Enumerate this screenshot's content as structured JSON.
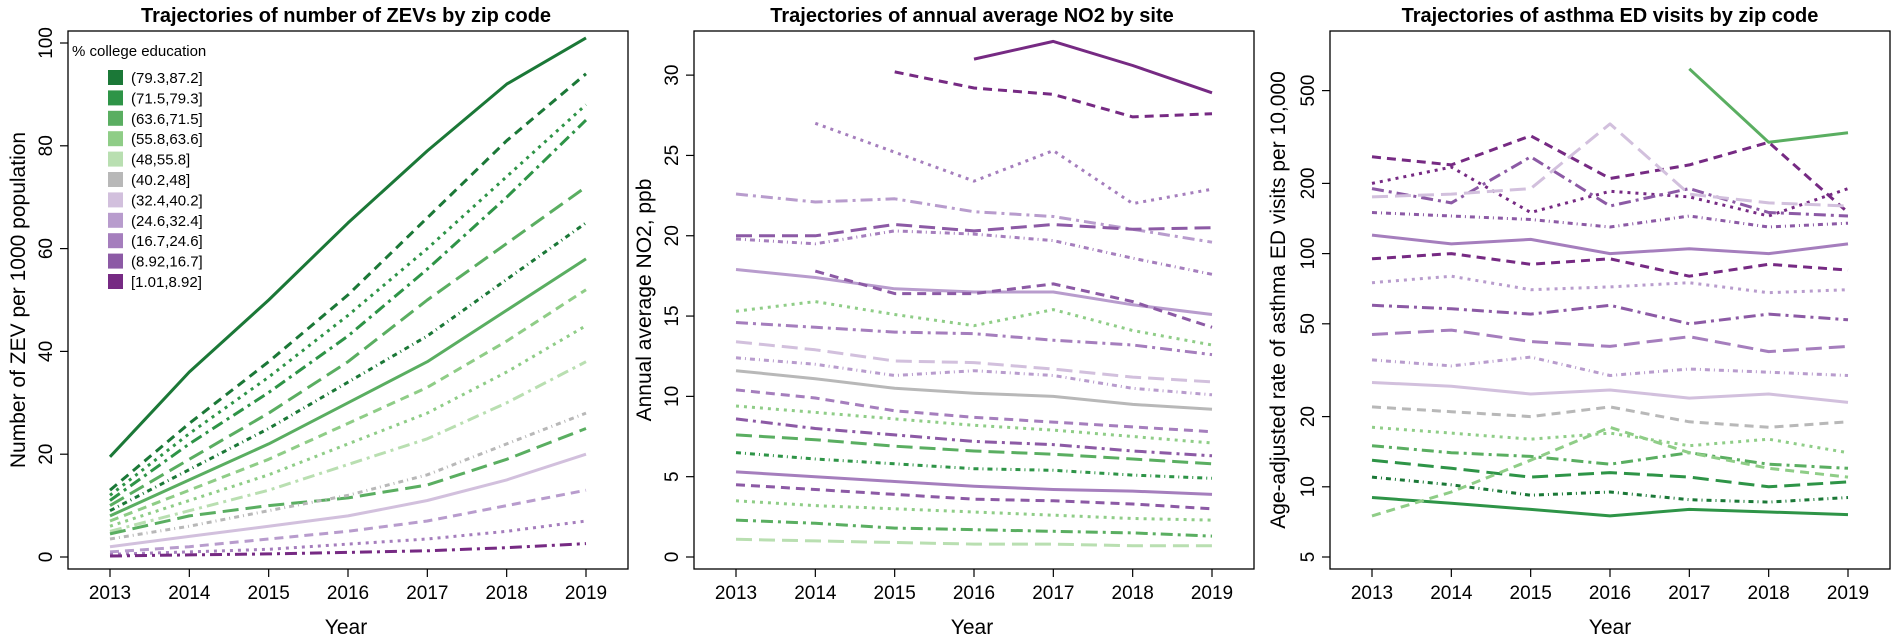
{
  "chart_data": [
    {
      "type": "line",
      "title": "Trajectories of number of ZEVs by zip code",
      "xlabel": "Year",
      "ylabel": "Number of ZEV per 1000 population",
      "x": [
        2013,
        2014,
        2015,
        2016,
        2017,
        2018,
        2019
      ],
      "xlim": [
        2013,
        2019
      ],
      "ylim": [
        0,
        100
      ],
      "yticks": [
        0,
        20,
        40,
        60,
        80,
        100
      ],
      "legend": {
        "title": "% college education",
        "placement": "top-left",
        "entries": [
          "(79.3,87.2]",
          "(71.5,79.3]",
          "(63.6,71.5]",
          "(55.8,63.6]",
          "(48,55.8]",
          "(40.2,48]",
          "(32.4,40.2]",
          "(24.6,32.4]",
          "(16.7,24.6]",
          "(8.92,16.7]",
          "[1.01,8.92]"
        ],
        "colors": [
          "#1b7837",
          "#2e9447",
          "#5aae61",
          "#8fcd87",
          "#b9dfb1",
          "#b8b8b8",
          "#d2c0dd",
          "#b89ccd",
          "#a57ebd",
          "#8c5aa5",
          "#762a83"
        ]
      },
      "series": [
        {
          "name": "(79.3,87.2]",
          "values": [
            19.5,
            36,
            50,
            65,
            79,
            92,
            101
          ]
        },
        {
          "name": "(79.3,87.2]",
          "values": [
            13,
            26,
            38,
            51,
            66,
            81,
            94
          ]
        },
        {
          "name": "(71.5,79.3]",
          "values": [
            12,
            24,
            35,
            47,
            60,
            74,
            88
          ]
        },
        {
          "name": "(71.5,79.3]",
          "values": [
            11,
            22,
            32,
            43,
            56,
            70,
            85
          ]
        },
        {
          "name": "(63.6,71.5]",
          "values": [
            10,
            19,
            28,
            38,
            50,
            61,
            72
          ]
        },
        {
          "name": "(79.3,87.2]",
          "values": [
            9,
            17,
            25,
            34,
            43,
            54,
            65
          ]
        },
        {
          "name": "(63.6,71.5]",
          "values": [
            8,
            15,
            22,
            30,
            38,
            48,
            58
          ]
        },
        {
          "name": "(55.8,63.6]",
          "values": [
            7,
            13,
            19,
            26,
            33,
            42,
            52
          ]
        },
        {
          "name": "(55.8,63.6]",
          "values": [
            6,
            11,
            16,
            22,
            28,
            36,
            45
          ]
        },
        {
          "name": "(48,55.8]",
          "values": [
            5,
            9,
            13,
            18,
            23,
            30,
            38
          ]
        },
        {
          "name": "(63.6,71.5]",
          "values": [
            4.5,
            8,
            10,
            11.5,
            14,
            19,
            25
          ]
        },
        {
          "name": "(40.2,48]",
          "values": [
            3.5,
            6,
            9,
            12,
            16,
            22,
            28
          ]
        },
        {
          "name": "(32.4,40.2]",
          "values": [
            2,
            4,
            6,
            8,
            11,
            15,
            20
          ]
        },
        {
          "name": "(24.6,32.4]",
          "values": [
            1,
            2,
            3.5,
            5,
            7,
            10,
            13
          ]
        },
        {
          "name": "(16.7,24.6]",
          "values": [
            0.5,
            1,
            1.5,
            2.5,
            3.5,
            5,
            7
          ]
        },
        {
          "name": "[1.01,8.92]",
          "values": [
            0.2,
            0.4,
            0.6,
            0.9,
            1.2,
            1.8,
            2.6
          ]
        }
      ]
    },
    {
      "type": "line",
      "title": "Trajectories of annual average NO2 by site",
      "xlabel": "Year",
      "ylabel": "Annual average NO2, ppb",
      "x": [
        2013,
        2014,
        2015,
        2016,
        2017,
        2018,
        2019
      ],
      "xlim": [
        2013,
        2019
      ],
      "ylim": [
        0,
        32
      ],
      "yticks": [
        0,
        5,
        10,
        15,
        20,
        25,
        30
      ],
      "series": [
        {
          "name": "[1.01,8.92]",
          "values": [
            null,
            null,
            null,
            31,
            32.1,
            30.6,
            28.9
          ]
        },
        {
          "name": "[1.01,8.92]",
          "values": [
            null,
            null,
            30.2,
            29.2,
            28.8,
            27.4,
            27.6
          ]
        },
        {
          "name": "(16.7,24.6]",
          "values": [
            null,
            27,
            25.2,
            23.4,
            25.3,
            22,
            22.9
          ]
        },
        {
          "name": "(24.6,32.4]",
          "values": [
            22.6,
            22.1,
            22.3,
            21.5,
            21.2,
            20.4,
            19.6
          ]
        },
        {
          "name": "(8.92,16.7]",
          "values": [
            20,
            20,
            20.7,
            20.3,
            20.7,
            20.4,
            20.5
          ]
        },
        {
          "name": "(16.7,24.6]",
          "values": [
            19.8,
            19.5,
            20.3,
            20.1,
            19.7,
            18.6,
            17.6
          ]
        },
        {
          "name": "(24.6,32.4]",
          "values": [
            17.9,
            17.4,
            16.7,
            16.5,
            16.5,
            15.7,
            15.1
          ]
        },
        {
          "name": "(8.92,16.7]",
          "values": [
            null,
            17.8,
            16.4,
            16.4,
            17,
            15.9,
            14.3
          ]
        },
        {
          "name": "(55.8,63.6]",
          "values": [
            15.3,
            15.9,
            15.1,
            14.4,
            15.4,
            14.1,
            13.2
          ]
        },
        {
          "name": "(16.7,24.6]",
          "values": [
            14.6,
            14.3,
            14,
            13.9,
            13.5,
            13.2,
            12.6
          ]
        },
        {
          "name": "(32.4,40.2]",
          "values": [
            13.4,
            12.9,
            12.2,
            12.1,
            11.7,
            11.2,
            10.9
          ]
        },
        {
          "name": "(24.6,32.4]",
          "values": [
            12.4,
            12,
            11.3,
            11.6,
            11.3,
            10.5,
            10.1
          ]
        },
        {
          "name": "(40.2,48]",
          "values": [
            11.6,
            11.1,
            10.5,
            10.2,
            10,
            9.5,
            9.2
          ]
        },
        {
          "name": "(16.7,24.6]",
          "values": [
            10.4,
            9.9,
            9.1,
            8.7,
            8.4,
            8.1,
            7.8
          ]
        },
        {
          "name": "(55.8,63.6]",
          "values": [
            9.4,
            9,
            8.6,
            8.2,
            7.9,
            7.5,
            7.1
          ]
        },
        {
          "name": "(8.92,16.7]",
          "values": [
            8.6,
            8,
            7.6,
            7.2,
            7,
            6.6,
            6.3
          ]
        },
        {
          "name": "(63.6,71.5]",
          "values": [
            7.6,
            7.3,
            6.9,
            6.6,
            6.4,
            6.1,
            5.8
          ]
        },
        {
          "name": "(71.5,79.3]",
          "values": [
            6.5,
            6.1,
            5.8,
            5.5,
            5.4,
            5.1,
            4.9
          ]
        },
        {
          "name": "(16.7,24.6]",
          "values": [
            5.3,
            5,
            4.7,
            4.4,
            4.2,
            4.1,
            3.9
          ]
        },
        {
          "name": "(8.92,16.7]",
          "values": [
            4.5,
            4.2,
            3.9,
            3.6,
            3.5,
            3.3,
            3
          ]
        },
        {
          "name": "(55.8,63.6]",
          "values": [
            3.5,
            3.2,
            3,
            2.8,
            2.6,
            2.4,
            2.3
          ]
        },
        {
          "name": "(63.6,71.5]",
          "values": [
            2.3,
            2.1,
            1.8,
            1.7,
            1.6,
            1.5,
            1.3
          ]
        },
        {
          "name": "(48,55.8]",
          "values": [
            1.1,
            1,
            0.9,
            0.8,
            0.8,
            0.7,
            0.7
          ]
        }
      ]
    },
    {
      "type": "line",
      "title": "Trajectories of asthma ED visits by zip code",
      "xlabel": "Year",
      "ylabel": "Age-adjusted rate of asthma ED visits per 10,000",
      "x": [
        2013,
        2014,
        2015,
        2016,
        2017,
        2018,
        2019
      ],
      "xlim": [
        2013,
        2019
      ],
      "ylim": [
        5,
        800
      ],
      "yscale": "log",
      "yticks": [
        5,
        10,
        20,
        50,
        100,
        200,
        500
      ],
      "series": [
        {
          "name": "(63.6,71.5]",
          "values": [
            null,
            null,
            null,
            null,
            620,
            300,
            330
          ]
        },
        {
          "name": "[1.01,8.92]",
          "values": [
            260,
            240,
            320,
            210,
            240,
            300,
            150
          ]
        },
        {
          "name": "[1.01,8.92]",
          "values": [
            200,
            235,
            150,
            185,
            175,
            145,
            190
          ]
        },
        {
          "name": "(8.92,16.7]",
          "values": [
            190,
            165,
            260,
            160,
            190,
            150,
            145
          ]
        },
        {
          "name": "(32.4,40.2]",
          "values": [
            175,
            180,
            190,
            360,
            180,
            165,
            160
          ]
        },
        {
          "name": "(8.92,16.7]",
          "values": [
            150,
            145,
            140,
            130,
            145,
            130,
            135
          ]
        },
        {
          "name": "(16.7,24.6]",
          "values": [
            120,
            110,
            115,
            100,
            105,
            100,
            110
          ]
        },
        {
          "name": "[1.01,8.92]",
          "values": [
            95,
            100,
            90,
            95,
            80,
            90,
            85
          ]
        },
        {
          "name": "(24.6,32.4]",
          "values": [
            75,
            80,
            70,
            72,
            75,
            68,
            70
          ]
        },
        {
          "name": "(8.92,16.7]",
          "values": [
            60,
            58,
            55,
            60,
            50,
            55,
            52
          ]
        },
        {
          "name": "(16.7,24.6]",
          "values": [
            45,
            47,
            42,
            40,
            44,
            38,
            40
          ]
        },
        {
          "name": "(24.6,32.4]",
          "values": [
            35,
            33,
            36,
            30,
            32,
            31,
            30
          ]
        },
        {
          "name": "(32.4,40.2]",
          "values": [
            28,
            27,
            25,
            26,
            24,
            25,
            23
          ]
        },
        {
          "name": "(40.2,48]",
          "values": [
            22,
            21,
            20,
            22,
            19,
            18,
            19
          ]
        },
        {
          "name": "(55.8,63.6]",
          "values": [
            18,
            17,
            16,
            17,
            15,
            16,
            14
          ]
        },
        {
          "name": "(63.6,71.5]",
          "values": [
            15,
            14,
            13.5,
            12.5,
            14,
            12.5,
            12
          ]
        },
        {
          "name": "(71.5,79.3]",
          "values": [
            13,
            12,
            11,
            11.5,
            11,
            10,
            10.5
          ]
        },
        {
          "name": "(79.3,87.2]",
          "values": [
            11,
            10.2,
            9.2,
            9.5,
            8.8,
            8.6,
            9
          ]
        },
        {
          "name": "(71.5,79.3]",
          "values": [
            9,
            8.5,
            8,
            7.5,
            8,
            7.8,
            7.6
          ]
        },
        {
          "name": "(55.8,63.6]",
          "values": [
            7.5,
            9.5,
            13,
            18,
            14,
            12,
            11
          ]
        }
      ]
    }
  ]
}
